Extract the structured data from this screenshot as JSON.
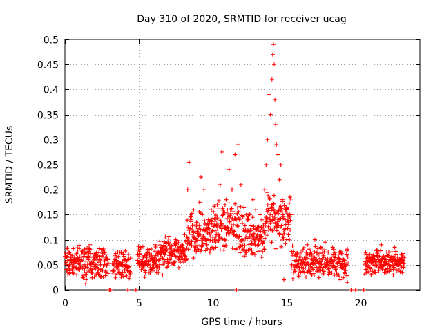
{
  "chart_data": {
    "type": "scatter",
    "title": "Day 310 of 2020, SRMTID for receiver ucag",
    "xlabel": "GPS time / hours",
    "ylabel": "SRMTID / TECUs",
    "xlim": [
      0,
      24
    ],
    "ylim": [
      0,
      0.5
    ],
    "x_ticks": [
      0,
      5,
      10,
      15,
      20
    ],
    "y_ticks": [
      0,
      0.05,
      0.1,
      0.15,
      0.2,
      0.25,
      0.3,
      0.35,
      0.4,
      0.45,
      0.5
    ],
    "grid": true,
    "marker": "+",
    "series": [
      {
        "name": "SRMTID",
        "color": "#ff0000",
        "points": [
          [
            0.05,
            0.055
          ],
          [
            0.1,
            0.04
          ],
          [
            0.15,
            0.082
          ],
          [
            0.2,
            0.03
          ],
          [
            0.3,
            0.05
          ],
          [
            0.4,
            0.065
          ],
          [
            0.5,
            0.035
          ],
          [
            0.6,
            0.045
          ],
          [
            0.7,
            0.055
          ],
          [
            0.8,
            0.03
          ],
          [
            0.9,
            0.06
          ],
          [
            1.0,
            0.04
          ],
          [
            1.1,
            0.07
          ],
          [
            1.2,
            0.025
          ],
          [
            1.3,
            0.05
          ],
          [
            1.4,
            0.012
          ],
          [
            1.5,
            0.045
          ],
          [
            1.6,
            0.06
          ],
          [
            1.7,
            0.09
          ],
          [
            1.8,
            0.035
          ],
          [
            1.9,
            0.05
          ],
          [
            2.0,
            0.065
          ],
          [
            2.1,
            0.03
          ],
          [
            2.2,
            0.045
          ],
          [
            2.3,
            0.055
          ],
          [
            2.4,
            0.04
          ],
          [
            2.5,
            0.068
          ],
          [
            2.6,
            0.025
          ],
          [
            2.7,
            0.05
          ],
          [
            2.8,
            0.035
          ],
          [
            2.9,
            0.06
          ],
          [
            3.0,
            0.0
          ],
          [
            3.1,
            0.0
          ],
          [
            3.3,
            0.05
          ],
          [
            3.4,
            0.03
          ],
          [
            3.5,
            0.065
          ],
          [
            3.6,
            0.04
          ],
          [
            3.7,
            0.075
          ],
          [
            3.8,
            0.025
          ],
          [
            3.9,
            0.05
          ],
          [
            4.0,
            0.035
          ],
          [
            4.1,
            0.06
          ],
          [
            4.2,
            0.045
          ],
          [
            4.3,
            0.07
          ],
          [
            4.4,
            0.03
          ],
          [
            4.25,
            0.0
          ],
          [
            4.8,
            0.0
          ],
          [
            5.0,
            0.055
          ],
          [
            5.1,
            0.085
          ],
          [
            5.2,
            0.04
          ],
          [
            5.3,
            0.065
          ],
          [
            5.4,
            0.025
          ],
          [
            5.5,
            0.07
          ],
          [
            5.6,
            0.05
          ],
          [
            5.7,
            0.08
          ],
          [
            5.8,
            0.04
          ],
          [
            5.9,
            0.06
          ],
          [
            6.0,
            0.045
          ],
          [
            6.1,
            0.09
          ],
          [
            6.2,
            0.035
          ],
          [
            6.3,
            0.07
          ],
          [
            6.4,
            0.05
          ],
          [
            6.5,
            0.085
          ],
          [
            6.6,
            0.03
          ],
          [
            6.7,
            0.06
          ],
          [
            6.8,
            0.075
          ],
          [
            6.9,
            0.045
          ],
          [
            7.0,
            0.095
          ],
          [
            7.1,
            0.06
          ],
          [
            7.2,
            0.08
          ],
          [
            7.3,
            0.05
          ],
          [
            7.4,
            0.07
          ],
          [
            7.5,
            0.1
          ],
          [
            7.6,
            0.065
          ],
          [
            7.7,
            0.085
          ],
          [
            7.8,
            0.055
          ],
          [
            7.9,
            0.09
          ],
          [
            8.0,
            0.075
          ],
          [
            8.1,
            0.11
          ],
          [
            8.2,
            0.06
          ],
          [
            8.3,
            0.2
          ],
          [
            8.4,
            0.255
          ],
          [
            8.5,
            0.14
          ],
          [
            8.6,
            0.12
          ],
          [
            8.7,
            0.16
          ],
          [
            8.8,
            0.1
          ],
          [
            8.9,
            0.135
          ],
          [
            9.0,
            0.115
          ],
          [
            9.1,
            0.175
          ],
          [
            9.2,
            0.225
          ],
          [
            9.3,
            0.15
          ],
          [
            9.4,
            0.2
          ],
          [
            9.5,
            0.12
          ],
          [
            9.6,
            0.09
          ],
          [
            9.7,
            0.14
          ],
          [
            9.8,
            0.075
          ],
          [
            9.9,
            0.16
          ],
          [
            10.0,
            0.105
          ],
          [
            10.1,
            0.13
          ],
          [
            10.2,
            0.085
          ],
          [
            10.3,
            0.17
          ],
          [
            10.4,
            0.11
          ],
          [
            10.5,
            0.21
          ],
          [
            10.6,
            0.275
          ],
          [
            10.7,
            0.15
          ],
          [
            10.8,
            0.1
          ],
          [
            10.9,
            0.18
          ],
          [
            11.0,
            0.125
          ],
          [
            11.1,
            0.24
          ],
          [
            11.2,
            0.16
          ],
          [
            11.3,
            0.2
          ],
          [
            11.4,
            0.13
          ],
          [
            11.5,
            0.27
          ],
          [
            11.6,
            0.0
          ],
          [
            11.7,
            0.29
          ],
          [
            11.8,
            0.14
          ],
          [
            11.9,
            0.21
          ],
          [
            12.0,
            0.1
          ],
          [
            12.1,
            0.165
          ],
          [
            12.2,
            0.075
          ],
          [
            12.3,
            0.12
          ],
          [
            12.4,
            0.08
          ],
          [
            12.5,
            0.15
          ],
          [
            12.6,
            0.11
          ],
          [
            12.7,
            0.18
          ],
          [
            12.8,
            0.1
          ],
          [
            12.9,
            0.16
          ],
          [
            13.0,
            0.125
          ],
          [
            13.1,
            0.09
          ],
          [
            13.2,
            0.15
          ],
          [
            13.3,
            0.065
          ],
          [
            13.4,
            0.12
          ],
          [
            13.5,
            0.2
          ],
          [
            13.6,
            0.25
          ],
          [
            13.7,
            0.3
          ],
          [
            13.8,
            0.39
          ],
          [
            13.9,
            0.35
          ],
          [
            14.0,
            0.42
          ],
          [
            14.05,
            0.47
          ],
          [
            14.1,
            0.49
          ],
          [
            14.15,
            0.45
          ],
          [
            14.2,
            0.38
          ],
          [
            14.25,
            0.33
          ],
          [
            14.3,
            0.29
          ],
          [
            14.4,
            0.27
          ],
          [
            14.5,
            0.22
          ],
          [
            14.6,
            0.25
          ],
          [
            14.7,
            0.18
          ],
          [
            14.8,
            0.02
          ],
          [
            14.9,
            0.14
          ],
          [
            15.0,
            0.1
          ],
          [
            15.1,
            0.135
          ],
          [
            15.2,
            0.15
          ],
          [
            15.5,
            0.04
          ],
          [
            15.6,
            0.07
          ],
          [
            15.7,
            0.05
          ],
          [
            15.8,
            0.03
          ],
          [
            15.9,
            0.06
          ],
          [
            16.0,
            0.045
          ],
          [
            16.1,
            0.08
          ],
          [
            16.2,
            0.035
          ],
          [
            16.3,
            0.065
          ],
          [
            16.4,
            0.09
          ],
          [
            16.5,
            0.05
          ],
          [
            16.6,
            0.075
          ],
          [
            16.7,
            0.03
          ],
          [
            16.8,
            0.06
          ],
          [
            16.9,
            0.1
          ],
          [
            17.0,
            0.045
          ],
          [
            17.1,
            0.07
          ],
          [
            17.2,
            0.055
          ],
          [
            17.3,
            0.085
          ],
          [
            17.4,
            0.04
          ],
          [
            17.5,
            0.065
          ],
          [
            17.6,
            0.095
          ],
          [
            17.7,
            0.05
          ],
          [
            17.8,
            0.075
          ],
          [
            17.9,
            0.035
          ],
          [
            18.0,
            0.06
          ],
          [
            18.1,
            0.085
          ],
          [
            18.2,
            0.045
          ],
          [
            18.3,
            0.07
          ],
          [
            18.4,
            0.03
          ],
          [
            18.5,
            0.055
          ],
          [
            18.6,
            0.02
          ],
          [
            18.7,
            0.045
          ],
          [
            18.8,
            0.06
          ],
          [
            18.9,
            0.035
          ],
          [
            19.0,
            0.05
          ],
          [
            19.1,
            0.015
          ],
          [
            19.35,
            0.0
          ],
          [
            19.65,
            0.0
          ],
          [
            20.2,
            0.0
          ],
          [
            20.3,
            0.05
          ],
          [
            20.4,
            0.035
          ],
          [
            20.5,
            0.065
          ],
          [
            20.6,
            0.045
          ],
          [
            20.7,
            0.03
          ],
          [
            20.8,
            0.06
          ],
          [
            20.9,
            0.04
          ],
          [
            21.0,
            0.055
          ],
          [
            21.1,
            0.08
          ],
          [
            21.2,
            0.06
          ],
          [
            21.3,
            0.045
          ],
          [
            21.4,
            0.09
          ],
          [
            21.5,
            0.065
          ],
          [
            21.6,
            0.035
          ],
          [
            21.7,
            0.06
          ],
          [
            21.8,
            0.05
          ],
          [
            21.9,
            0.075
          ],
          [
            22.0,
            0.04
          ],
          [
            22.1,
            0.06
          ],
          [
            22.2,
            0.03
          ],
          [
            22.3,
            0.085
          ],
          [
            22.4,
            0.05
          ],
          [
            22.5,
            0.065
          ],
          [
            22.6,
            0.04
          ],
          [
            22.7,
            0.055
          ],
          [
            22.8,
            0.035
          ],
          [
            22.9,
            0.045
          ]
        ]
      }
    ],
    "bands": [
      {
        "x_from": 0.0,
        "x_to": 2.95,
        "y_min": 0.02,
        "y_max": 0.09,
        "count": 170
      },
      {
        "x_from": 3.2,
        "x_to": 4.45,
        "y_min": 0.02,
        "y_max": 0.08,
        "count": 70
      },
      {
        "x_from": 4.9,
        "x_to": 6.4,
        "y_min": 0.03,
        "y_max": 0.09,
        "count": 90
      },
      {
        "x_from": 6.4,
        "x_to": 8.25,
        "y_min": 0.04,
        "y_max": 0.11,
        "count": 110
      },
      {
        "x_from": 8.25,
        "x_to": 10.0,
        "y_min": 0.06,
        "y_max": 0.16,
        "count": 110
      },
      {
        "x_from": 10.0,
        "x_to": 12.0,
        "y_min": 0.07,
        "y_max": 0.18,
        "count": 120
      },
      {
        "x_from": 12.0,
        "x_to": 13.6,
        "y_min": 0.06,
        "y_max": 0.16,
        "count": 100
      },
      {
        "x_from": 13.6,
        "x_to": 15.3,
        "y_min": 0.08,
        "y_max": 0.2,
        "count": 110
      },
      {
        "x_from": 15.3,
        "x_to": 19.15,
        "y_min": 0.02,
        "y_max": 0.09,
        "count": 210
      },
      {
        "x_from": 20.25,
        "x_to": 22.95,
        "y_min": 0.03,
        "y_max": 0.08,
        "count": 160
      }
    ]
  }
}
